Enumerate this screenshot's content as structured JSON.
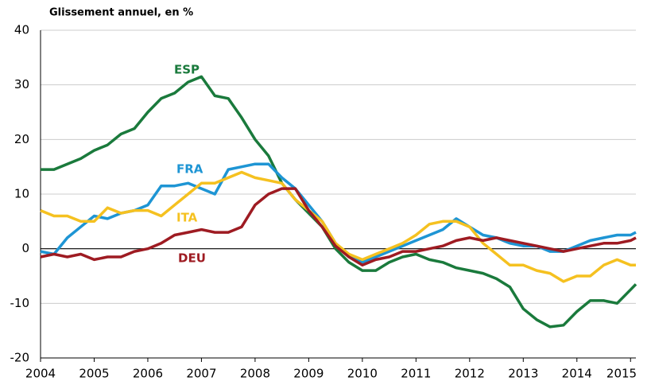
{
  "chart_data": {
    "type": "line",
    "title": "Glissement annuel, en %",
    "x": [
      2004,
      2004.25,
      2004.5,
      2004.75,
      2005,
      2005.25,
      2005.5,
      2005.75,
      2006,
      2006.25,
      2006.5,
      2006.75,
      2007,
      2007.25,
      2007.5,
      2007.75,
      2008,
      2008.25,
      2008.5,
      2008.75,
      2009,
      2009.25,
      2009.5,
      2009.75,
      2010,
      2010.25,
      2010.5,
      2010.75,
      2011,
      2011.25,
      2011.5,
      2011.75,
      2012,
      2012.25,
      2012.5,
      2012.75,
      2013,
      2013.25,
      2013.5,
      2013.75,
      2014,
      2014.25,
      2014.5,
      2014.75,
      2015,
      2015.1
    ],
    "series": [
      {
        "name": "ESP",
        "color": "#1a7a3c",
        "values": [
          14.5,
          14.5,
          15.5,
          16.5,
          18,
          19,
          21,
          22,
          25,
          27.5,
          28.5,
          30.5,
          31.5,
          28,
          27.5,
          24,
          20,
          17,
          12,
          9,
          6.5,
          4,
          0,
          -2.5,
          -4,
          -4,
          -2.5,
          -1.5,
          -1,
          -2,
          -2.5,
          -3.5,
          -4,
          -4.5,
          -5.5,
          -7,
          -11,
          -13,
          -14.3,
          -14,
          -11.5,
          -9.5,
          -9.5,
          -10,
          -7.5,
          -6.5
        ]
      },
      {
        "name": "FRA",
        "color": "#1e95d4",
        "values": [
          -0.5,
          -1,
          2,
          4,
          6,
          5.5,
          6.5,
          7,
          8,
          11.5,
          11.5,
          12,
          11,
          10,
          14.5,
          15,
          15.5,
          15.5,
          13,
          11,
          8,
          5,
          1,
          -1.5,
          -2.5,
          -1.5,
          -0.5,
          0.5,
          1.5,
          2.5,
          3.5,
          5.5,
          4,
          2.5,
          2,
          1,
          0.5,
          0.5,
          -0.5,
          -0.5,
          0.5,
          1.5,
          2,
          2.5,
          2.5,
          3
        ]
      },
      {
        "name": "ITA",
        "color": "#f5c120",
        "values": [
          7,
          6,
          6,
          5,
          5,
          7.5,
          6.5,
          7,
          7,
          6,
          8,
          10,
          12,
          12,
          13,
          14,
          13,
          12.5,
          12,
          9,
          7,
          5,
          1,
          -1,
          -2,
          -1,
          0,
          1,
          2.5,
          4.5,
          5,
          5,
          4,
          1,
          -1,
          -3,
          -3,
          -4,
          -4.5,
          -6,
          -5,
          -5,
          -3,
          -2,
          -3,
          -3
        ]
      },
      {
        "name": "DEU",
        "color": "#9e1b22",
        "values": [
          -1.5,
          -1,
          -1.5,
          -1,
          -2,
          -1.5,
          -1.5,
          -0.5,
          0,
          1,
          2.5,
          3,
          3.5,
          3,
          3,
          4,
          8,
          10,
          11,
          11,
          7,
          4,
          0.5,
          -1.5,
          -3,
          -2,
          -1.5,
          -0.5,
          -0.5,
          0,
          0.5,
          1.5,
          2,
          1.5,
          2,
          1.5,
          1,
          0.5,
          0,
          -0.5,
          0,
          0.5,
          1,
          1,
          1.5,
          2
        ]
      }
    ],
    "xlim": [
      2004,
      2015.1
    ],
    "xticks": [
      2004,
      2005,
      2006,
      2007,
      2008,
      2009,
      2010,
      2011,
      2012,
      2013,
      2014,
      2015
    ],
    "ylim": [
      -20,
      40
    ],
    "yticks": [
      -20,
      -10,
      0,
      10,
      20,
      30,
      40
    ],
    "grid": true
  }
}
